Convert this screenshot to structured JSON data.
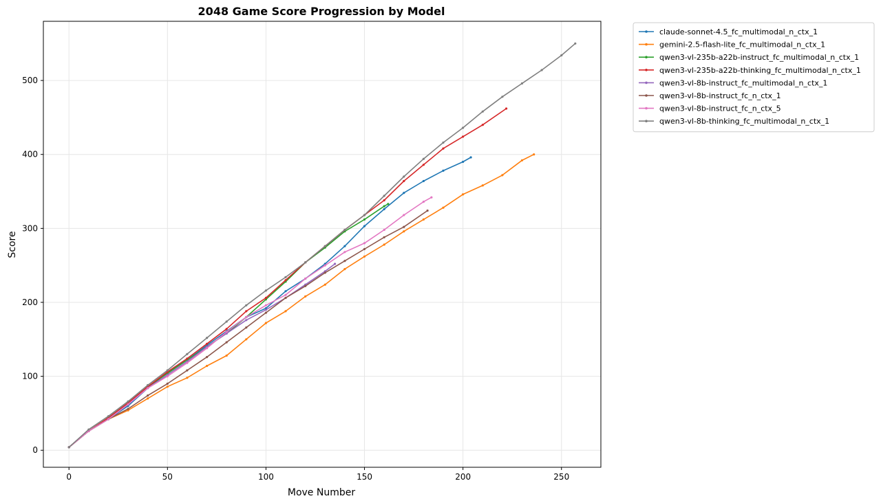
{
  "chart_data": {
    "type": "line",
    "title": "2048 Game Score Progression by Model",
    "xlabel": "Move Number",
    "ylabel": "Score",
    "xlim": [
      -13,
      270
    ],
    "ylim": [
      -23,
      580
    ],
    "xticks": [
      0,
      50,
      100,
      150,
      200,
      250
    ],
    "yticks": [
      0,
      100,
      200,
      300,
      400,
      500
    ],
    "grid": true,
    "legend_position": "outside-upper-right",
    "series": [
      {
        "name": "claude-sonnet-4.5_fc_multimodal_n_ctx_1",
        "color": "#1f77b4",
        "points": [
          [
            0,
            4
          ],
          [
            10,
            26
          ],
          [
            20,
            42
          ],
          [
            30,
            60
          ],
          [
            40,
            84
          ],
          [
            50,
            105
          ],
          [
            60,
            122
          ],
          [
            70,
            142
          ],
          [
            80,
            161
          ],
          [
            90,
            180
          ],
          [
            100,
            192
          ],
          [
            110,
            215
          ],
          [
            120,
            232
          ],
          [
            130,
            252
          ],
          [
            140,
            276
          ],
          [
            150,
            303
          ],
          [
            160,
            326
          ],
          [
            170,
            348
          ],
          [
            180,
            364
          ],
          [
            190,
            378
          ],
          [
            200,
            390
          ],
          [
            204,
            396
          ]
        ]
      },
      {
        "name": "gemini-2.5-flash-lite_fc_multimodal_n_ctx_1",
        "color": "#ff7f0e",
        "points": [
          [
            0,
            4
          ],
          [
            10,
            26
          ],
          [
            20,
            42
          ],
          [
            30,
            54
          ],
          [
            40,
            70
          ],
          [
            50,
            86
          ],
          [
            60,
            98
          ],
          [
            70,
            114
          ],
          [
            80,
            128
          ],
          [
            90,
            150
          ],
          [
            100,
            172
          ],
          [
            110,
            188
          ],
          [
            120,
            208
          ],
          [
            130,
            224
          ],
          [
            140,
            245
          ],
          [
            150,
            262
          ],
          [
            160,
            278
          ],
          [
            170,
            296
          ],
          [
            180,
            312
          ],
          [
            190,
            328
          ],
          [
            200,
            346
          ],
          [
            210,
            358
          ],
          [
            220,
            372
          ],
          [
            230,
            392
          ],
          [
            236,
            400
          ]
        ]
      },
      {
        "name": "qwen3-vl-235b-a22b-instruct_fc_multimodal_n_ctx_1",
        "color": "#2ca02c",
        "points": [
          [
            0,
            4
          ],
          [
            10,
            26
          ],
          [
            20,
            44
          ],
          [
            30,
            64
          ],
          [
            40,
            86
          ],
          [
            50,
            104
          ],
          [
            60,
            122
          ],
          [
            70,
            140
          ],
          [
            80,
            158
          ],
          [
            90,
            180
          ],
          [
            100,
            204
          ],
          [
            110,
            228
          ],
          [
            120,
            254
          ],
          [
            130,
            274
          ],
          [
            140,
            296
          ],
          [
            150,
            312
          ],
          [
            160,
            330
          ],
          [
            162,
            333
          ]
        ]
      },
      {
        "name": "qwen3-vl-235b-a22b-thinking_fc_multimodal_n_ctx_1",
        "color": "#d62728",
        "points": [
          [
            0,
            4
          ],
          [
            10,
            26
          ],
          [
            20,
            44
          ],
          [
            30,
            64
          ],
          [
            40,
            86
          ],
          [
            50,
            106
          ],
          [
            60,
            124
          ],
          [
            70,
            144
          ],
          [
            80,
            164
          ],
          [
            90,
            188
          ],
          [
            100,
            206
          ],
          [
            110,
            230
          ],
          [
            120,
            254
          ],
          [
            130,
            276
          ],
          [
            140,
            298
          ],
          [
            150,
            318
          ],
          [
            160,
            338
          ],
          [
            170,
            364
          ],
          [
            180,
            386
          ],
          [
            190,
            408
          ],
          [
            200,
            424
          ],
          [
            210,
            440
          ],
          [
            222,
            462
          ]
        ]
      },
      {
        "name": "qwen3-vl-8b-instruct_fc_multimodal_n_ctx_1",
        "color": "#9467bd",
        "points": [
          [
            0,
            4
          ],
          [
            10,
            26
          ],
          [
            20,
            42
          ],
          [
            30,
            62
          ],
          [
            40,
            84
          ],
          [
            50,
            102
          ],
          [
            60,
            120
          ],
          [
            70,
            140
          ],
          [
            80,
            158
          ],
          [
            90,
            176
          ],
          [
            100,
            190
          ],
          [
            110,
            206
          ],
          [
            120,
            224
          ],
          [
            130,
            242
          ],
          [
            135,
            252
          ]
        ]
      },
      {
        "name": "qwen3-vl-8b-instruct_fc_n_ctx_1",
        "color": "#8c564b",
        "points": [
          [
            0,
            4
          ],
          [
            10,
            26
          ],
          [
            20,
            42
          ],
          [
            30,
            56
          ],
          [
            40,
            74
          ],
          [
            50,
            90
          ],
          [
            60,
            108
          ],
          [
            70,
            126
          ],
          [
            80,
            146
          ],
          [
            90,
            166
          ],
          [
            100,
            186
          ],
          [
            110,
            206
          ],
          [
            120,
            222
          ],
          [
            130,
            240
          ],
          [
            140,
            256
          ],
          [
            150,
            272
          ],
          [
            160,
            288
          ],
          [
            170,
            302
          ],
          [
            182,
            324
          ]
        ]
      },
      {
        "name": "qwen3-vl-8b-instruct_fc_n_ctx_5",
        "color": "#e377c2",
        "points": [
          [
            0,
            4
          ],
          [
            10,
            26
          ],
          [
            20,
            42
          ],
          [
            30,
            62
          ],
          [
            40,
            84
          ],
          [
            50,
            100
          ],
          [
            60,
            118
          ],
          [
            70,
            138
          ],
          [
            80,
            160
          ],
          [
            90,
            180
          ],
          [
            100,
            196
          ],
          [
            110,
            210
          ],
          [
            120,
            232
          ],
          [
            130,
            250
          ],
          [
            140,
            268
          ],
          [
            150,
            280
          ],
          [
            160,
            298
          ],
          [
            170,
            318
          ],
          [
            180,
            336
          ],
          [
            184,
            342
          ]
        ]
      },
      {
        "name": "qwen3-vl-8b-thinking_fc_multimodal_n_ctx_1",
        "color": "#7f7f7f",
        "points": [
          [
            0,
            4
          ],
          [
            10,
            28
          ],
          [
            20,
            46
          ],
          [
            30,
            66
          ],
          [
            40,
            88
          ],
          [
            50,
            108
          ],
          [
            60,
            130
          ],
          [
            70,
            152
          ],
          [
            80,
            174
          ],
          [
            90,
            196
          ],
          [
            100,
            216
          ],
          [
            110,
            234
          ],
          [
            120,
            254
          ],
          [
            130,
            276
          ],
          [
            140,
            298
          ],
          [
            150,
            318
          ],
          [
            160,
            344
          ],
          [
            170,
            370
          ],
          [
            180,
            394
          ],
          [
            190,
            416
          ],
          [
            200,
            436
          ],
          [
            210,
            458
          ],
          [
            220,
            478
          ],
          [
            230,
            496
          ],
          [
            240,
            514
          ],
          [
            250,
            534
          ],
          [
            257,
            550
          ]
        ]
      }
    ]
  }
}
